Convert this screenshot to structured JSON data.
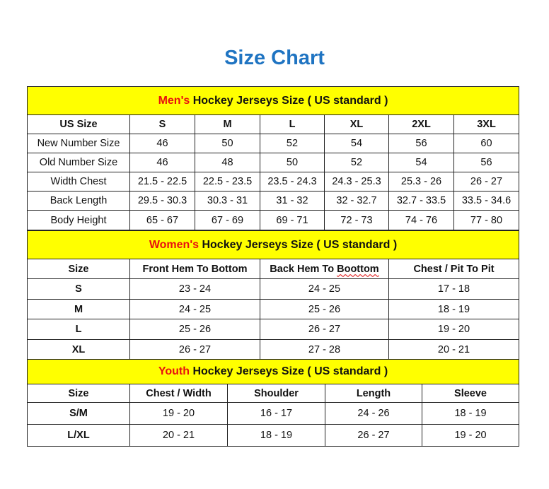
{
  "title": "Size Chart",
  "colors": {
    "title": "#1f74c2",
    "header_bg": "#ffff00",
    "accent": "#e81010"
  },
  "men": {
    "accent": "Men's",
    "heading": " Hockey Jerseys Size ( US standard )",
    "columns": [
      "US Size",
      "S",
      "M",
      "L",
      "XL",
      "2XL",
      "3XL"
    ],
    "rows": [
      [
        "New Number Size",
        "46",
        "50",
        "52",
        "54",
        "56",
        "60"
      ],
      [
        "Old Number Size",
        "46",
        "48",
        "50",
        "52",
        "54",
        "56"
      ],
      [
        "Width Chest",
        "21.5 - 22.5",
        "22.5 - 23.5",
        "23.5 - 24.3",
        "24.3 - 25.3",
        "25.3 - 26",
        "26 - 27"
      ],
      [
        "Back Length",
        "29.5 - 30.3",
        "30.3 - 31",
        "31 - 32",
        "32 - 32.7",
        "32.7 - 33.5",
        "33.5 - 34.6"
      ],
      [
        "Body Height",
        "65 - 67",
        "67 - 69",
        "69 - 71",
        "72 - 73",
        "74 - 76",
        "77 - 80"
      ]
    ]
  },
  "women": {
    "accent": "Women's",
    "heading": " Hockey Jerseys Size ( US standard )",
    "columns": [
      "Size",
      "Front Hem To Bottom",
      "Back Hem To Boottom",
      "Chest / Pit To Pit"
    ],
    "rows": [
      [
        "S",
        "23 - 24",
        "24 - 25",
        "17 - 18"
      ],
      [
        "M",
        "24 - 25",
        "25 - 26",
        "18 - 19"
      ],
      [
        "L",
        "25 - 26",
        "26 - 27",
        "19 - 20"
      ],
      [
        "XL",
        "26 - 27",
        "27 - 28",
        "20 - 21"
      ]
    ]
  },
  "youth": {
    "accent": "Youth",
    "heading": " Hockey Jerseys Size ( US standard )",
    "columns": [
      "Size",
      "Chest / Width",
      "Shoulder",
      "Length",
      "Sleeve"
    ],
    "rows": [
      [
        "S/M",
        "19 - 20",
        "16 - 17",
        "24 - 26",
        "18 - 19"
      ],
      [
        "L/XL",
        "20 - 21",
        "18 - 19",
        "26 - 27",
        "19 - 20"
      ]
    ]
  }
}
